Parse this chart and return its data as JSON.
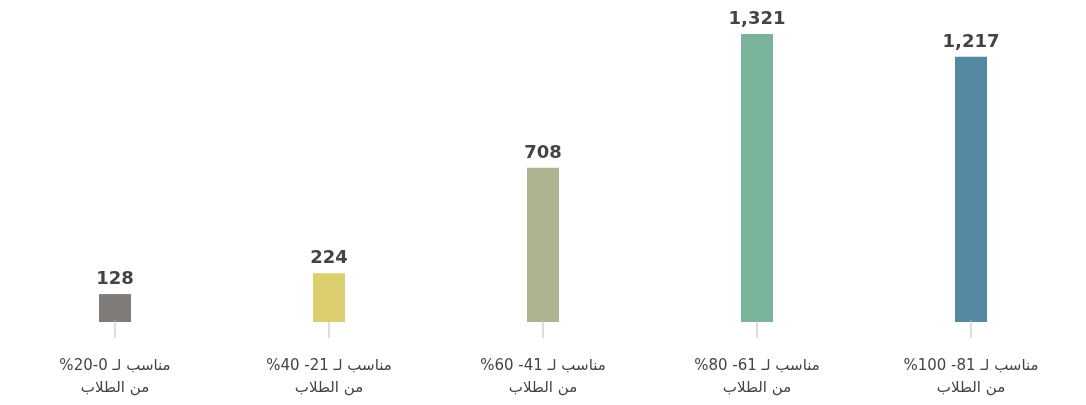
{
  "chart_data": {
    "type": "bar",
    "categories": [
      "مناسب لـ 0-20%\nمن الطلاب",
      "مناسب لـ 21- 40%\nمن الطلاب",
      "مناسب لـ 41- 60%\nمن الطلاب",
      "مناسب لـ 61- 80%\nمن الطلاب",
      "مناسب لـ 81- 100%\nمن الطلاب"
    ],
    "values": [
      128,
      224,
      708,
      1321,
      1217
    ],
    "value_labels": [
      "128",
      "224",
      "708",
      "1,321",
      "1,217"
    ],
    "colors": [
      "#7f7b78",
      "#dbcf70",
      "#aeb48f",
      "#79b39c",
      "#5589a3"
    ]
  }
}
